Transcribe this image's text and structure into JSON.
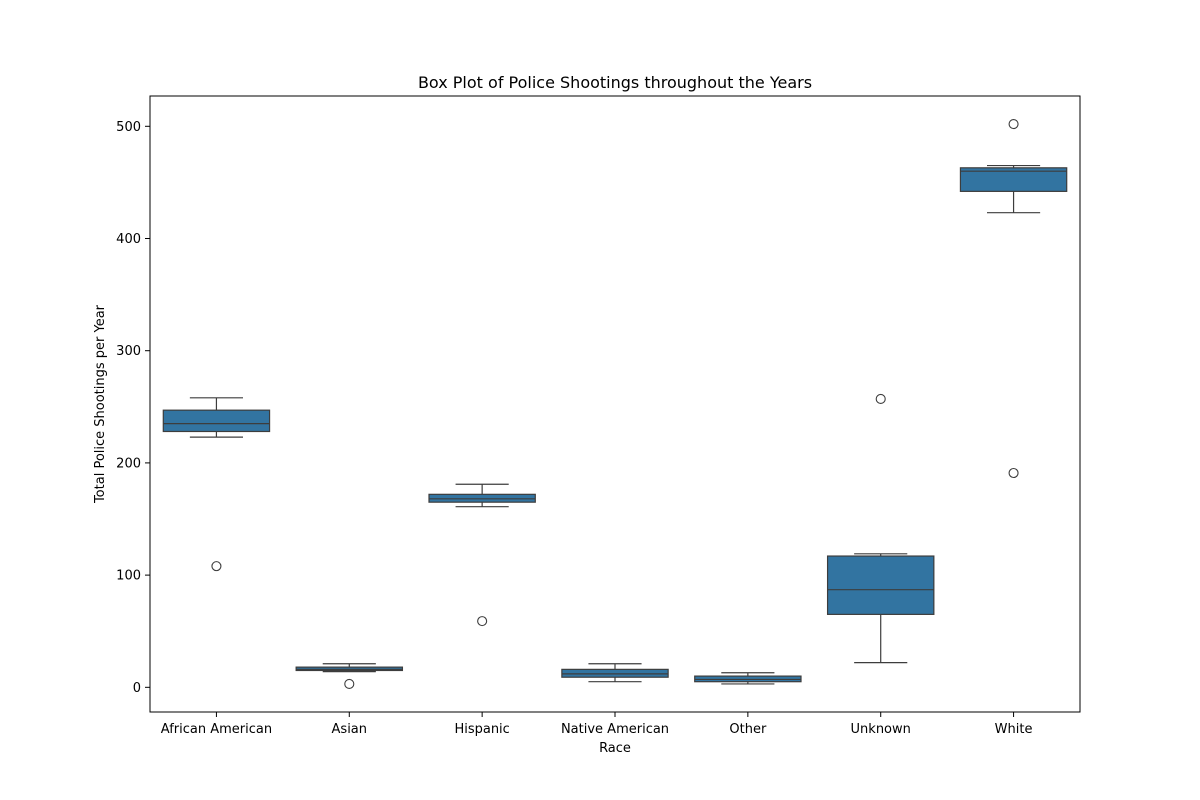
{
  "chart_data": {
    "type": "box",
    "title": "Box Plot of Police Shootings throughout the Years",
    "xlabel": "Race",
    "ylabel": "Total Police Shootings per Year",
    "ylim": [
      -22,
      527
    ],
    "yticks": [
      0,
      100,
      200,
      300,
      400,
      500
    ],
    "grid": false,
    "legend": "none",
    "box_color": "#3274a1",
    "line_color": "#3d3d3d",
    "categories": [
      "African American",
      "Asian",
      "Hispanic",
      "Native American",
      "Other",
      "Unknown",
      "White"
    ],
    "boxes": [
      {
        "category": "African American",
        "whisker_low": 223,
        "q1": 228,
        "median": 235,
        "q3": 247,
        "whisker_high": 258,
        "outliers": [
          108
        ]
      },
      {
        "category": "Asian",
        "whisker_low": 14,
        "q1": 15,
        "median": 16,
        "q3": 18,
        "whisker_high": 21,
        "outliers": [
          3
        ]
      },
      {
        "category": "Hispanic",
        "whisker_low": 161,
        "q1": 165,
        "median": 168,
        "q3": 172,
        "whisker_high": 181,
        "outliers": [
          59
        ]
      },
      {
        "category": "Native American",
        "whisker_low": 5,
        "q1": 9,
        "median": 12,
        "q3": 16,
        "whisker_high": 21,
        "outliers": []
      },
      {
        "category": "Other",
        "whisker_low": 3,
        "q1": 5,
        "median": 7,
        "q3": 10,
        "whisker_high": 13,
        "outliers": []
      },
      {
        "category": "Unknown",
        "whisker_low": 22,
        "q1": 65,
        "median": 87,
        "q3": 117,
        "whisker_high": 119,
        "outliers": [
          257
        ]
      },
      {
        "category": "White",
        "whisker_low": 423,
        "q1": 442,
        "median": 460,
        "q3": 463,
        "whisker_high": 465,
        "outliers": [
          502,
          191
        ]
      }
    ]
  }
}
